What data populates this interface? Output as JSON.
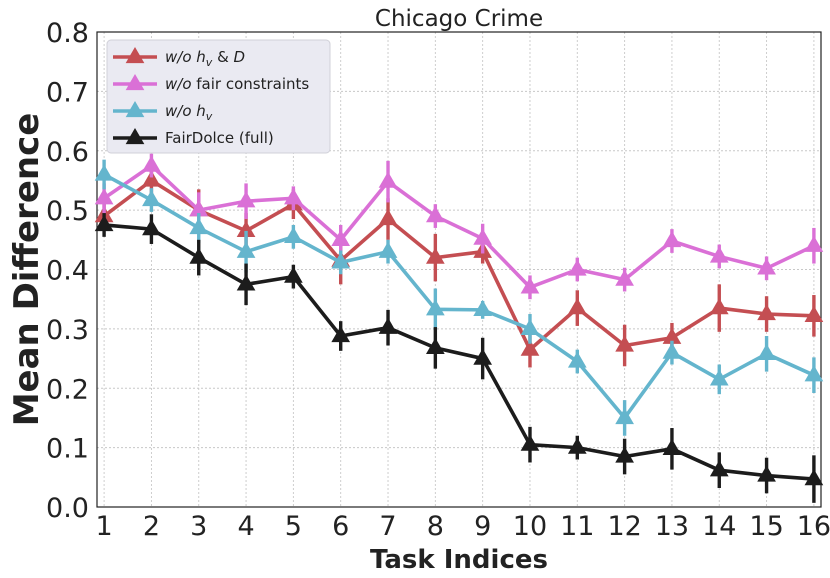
{
  "chart_data": {
    "type": "line",
    "title": "Chicago Crime",
    "xlabel": "Task Indices",
    "ylabel": "Mean Difference",
    "x": [
      1,
      2,
      3,
      4,
      5,
      6,
      7,
      8,
      9,
      10,
      11,
      12,
      13,
      14,
      15,
      16
    ],
    "xlim": [
      0.85,
      16.15
    ],
    "ylim": [
      0.0,
      0.8
    ],
    "yticks": [
      "0.0",
      "0.1",
      "0.2",
      "0.3",
      "0.4",
      "0.5",
      "0.6",
      "0.7",
      "0.8"
    ],
    "xticks": [
      "1",
      "2",
      "3",
      "4",
      "5",
      "6",
      "7",
      "8",
      "9",
      "10",
      "11",
      "12",
      "13",
      "14",
      "15",
      "16"
    ],
    "grid": true,
    "legend_position": "top-left",
    "series": [
      {
        "name": "w/o h_v & D",
        "legend_italic": "w/o",
        "legend_var": "h",
        "legend_sub": "v",
        "legend_rest": " & ",
        "legend_tail_italic": "D",
        "color": "#C44E52",
        "values": [
          0.49,
          0.55,
          0.5,
          0.465,
          0.51,
          0.415,
          0.485,
          0.42,
          0.43,
          0.265,
          0.335,
          0.272,
          0.285,
          0.335,
          0.325,
          0.322
        ],
        "errors": [
          0.025,
          0.025,
          0.035,
          0.03,
          0.025,
          0.04,
          0.035,
          0.04,
          0.02,
          0.03,
          0.03,
          0.035,
          0.025,
          0.04,
          0.03,
          0.035
        ]
      },
      {
        "name": "w/o fair constraints",
        "legend_italic": "w/o",
        "legend_rest": " fair constraints",
        "color": "#DA70D6",
        "values": [
          0.52,
          0.575,
          0.5,
          0.515,
          0.52,
          0.45,
          0.548,
          0.49,
          0.452,
          0.37,
          0.4,
          0.383,
          0.448,
          0.422,
          0.402,
          0.44
        ],
        "errors": [
          0.025,
          0.02,
          0.03,
          0.03,
          0.02,
          0.025,
          0.035,
          0.02,
          0.025,
          0.02,
          0.02,
          0.02,
          0.02,
          0.02,
          0.02,
          0.03
        ]
      },
      {
        "name": "w/o h_v",
        "legend_italic": "w/o",
        "legend_var": "h",
        "legend_sub": "v",
        "color": "#64B5CD",
        "values": [
          0.56,
          0.517,
          0.47,
          0.43,
          0.455,
          0.412,
          0.43,
          0.333,
          0.332,
          0.3,
          0.245,
          0.15,
          0.26,
          0.215,
          0.258,
          0.222
        ],
        "errors": [
          0.025,
          0.02,
          0.025,
          0.035,
          0.02,
          0.02,
          0.02,
          0.035,
          0.015,
          0.025,
          0.02,
          0.03,
          0.02,
          0.025,
          0.03,
          0.03
        ]
      },
      {
        "name": "FairDolce (full)",
        "legend_rest": "FairDolce (full)",
        "color": "#1C1C1C",
        "values": [
          0.475,
          0.468,
          0.42,
          0.375,
          0.388,
          0.288,
          0.302,
          0.268,
          0.25,
          0.105,
          0.1,
          0.085,
          0.098,
          0.062,
          0.053,
          0.047
        ],
        "errors": [
          0.02,
          0.025,
          0.03,
          0.035,
          0.02,
          0.025,
          0.03,
          0.035,
          0.035,
          0.03,
          0.02,
          0.03,
          0.035,
          0.03,
          0.03,
          0.04
        ]
      }
    ]
  }
}
